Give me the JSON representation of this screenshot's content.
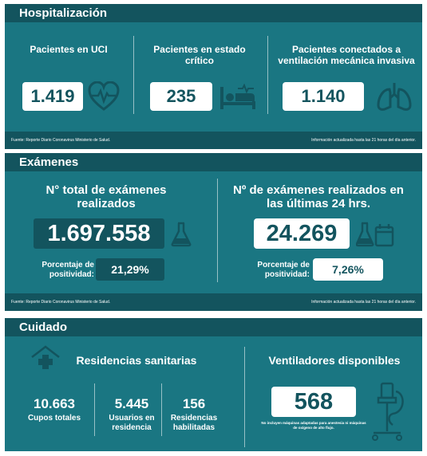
{
  "hospitalizacion": {
    "title": "Hospitalización",
    "uci_label": "Pacientes en UCI",
    "uci_value": "1.419",
    "critico_label": "Pacientes en estado crítico",
    "critico_value": "235",
    "ventilacion_label": "Pacientes conectados a ventilación mecánica invasiva",
    "ventilacion_value": "1.140",
    "source": "Fuente: Reporte Diario Coronavirus Ministerio de Salud.",
    "updated": "Información actualizada hasta las 21 horas del día anterior."
  },
  "examenes": {
    "title": "Exámenes",
    "total_label": "N° total de exámenes realizados",
    "total_value": "1.697.558",
    "total_pos_label": "Porcentaje de positividad:",
    "total_pos_value": "21,29%",
    "daily_label": "Nº de exámenes realizados en las últimas 24 hrs.",
    "daily_value": "24.269",
    "daily_pos_label": "Porcentaje de positividad:",
    "daily_pos_value": "7,26%",
    "source": "Fuente: Reporte Diario Coronavirus Ministerio de Salud.",
    "updated": "Información actualizada hasta las 21 horas del día anterior."
  },
  "cuidado": {
    "title": "Cuidado",
    "residencias_label": "Residencias sanitarias",
    "cupos_value": "10.663",
    "cupos_label": "Cupos totales",
    "usuarios_value": "5.445",
    "usuarios_label": "Usuarios en residencia",
    "habilitadas_value": "156",
    "habilitadas_label": "Residencias habilitadas",
    "ventiladores_label": "Ventiladores disponibles",
    "ventiladores_value": "568",
    "ventiladores_note": "No incluyen máquinas adaptadas para anestesia ni máquinas de oxígeno de alto flujo."
  },
  "icons": [
    "heart-pulse-icon",
    "hospital-bed-icon",
    "lungs-icon",
    "flask-icon",
    "flask-calendar-icon",
    "house-cross-icon",
    "ventilator-icon"
  ],
  "colors": {
    "panel": "#1a7682",
    "header": "#13545e",
    "box": "#ffffff"
  }
}
